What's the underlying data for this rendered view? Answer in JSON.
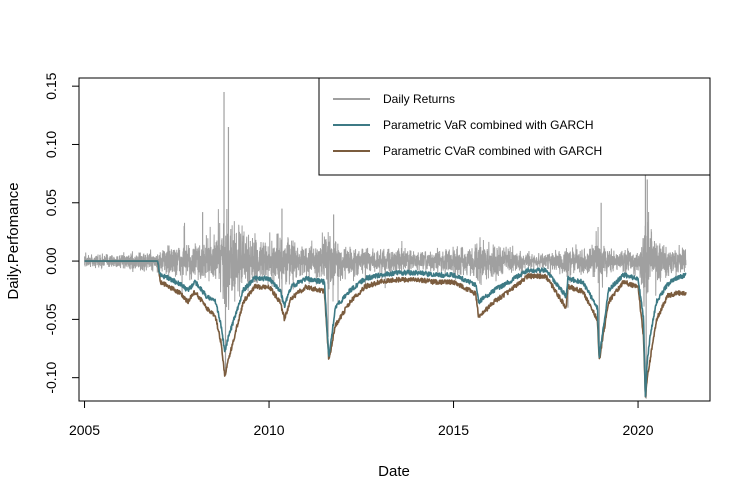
{
  "chart_data": {
    "type": "line",
    "title": "",
    "xlabel": "Date",
    "ylabel": "Daily.Perfomance",
    "xlim": [
      2004.85,
      2021.95
    ],
    "ylim": [
      -0.12,
      0.157
    ],
    "x_ticks": [
      2005,
      2010,
      2015,
      2020
    ],
    "x_tick_labels": [
      "2005",
      "2010",
      "2015",
      "2020"
    ],
    "y_ticks": [
      -0.1,
      -0.05,
      0.0,
      0.05,
      0.1,
      0.15
    ],
    "y_tick_labels": [
      "-0.10",
      "-0.05",
      "0.00",
      "0.05",
      "0.10",
      "0.15"
    ],
    "grid": false,
    "legend_position": "top-right",
    "series": [
      {
        "name": "Daily Returns",
        "color": "#a0a0a0",
        "style": "noisy-returns",
        "x": [
          2005.0,
          2006.0,
          2006.9,
          2007.3,
          2007.6,
          2008.0,
          2008.4,
          2008.7,
          2008.85,
          2009.1,
          2009.5,
          2010.0,
          2010.4,
          2011.0,
          2011.6,
          2011.9,
          2012.5,
          2013.0,
          2013.5,
          2014.0,
          2014.8,
          2015.5,
          2015.7,
          2016.1,
          2016.5,
          2017.0,
          2017.5,
          2018.1,
          2018.5,
          2018.95,
          2019.5,
          2020.0,
          2020.2,
          2020.3,
          2020.5,
          2020.9,
          2021.3
        ],
        "amplitude": [
          0.008,
          0.009,
          0.012,
          0.018,
          0.02,
          0.022,
          0.025,
          0.04,
          0.06,
          0.045,
          0.03,
          0.022,
          0.028,
          0.015,
          0.035,
          0.022,
          0.015,
          0.014,
          0.015,
          0.012,
          0.014,
          0.018,
          0.025,
          0.02,
          0.015,
          0.008,
          0.009,
          0.018,
          0.014,
          0.02,
          0.012,
          0.015,
          0.06,
          0.04,
          0.022,
          0.016,
          0.014
        ],
        "spikes": [
          {
            "x": 2008.78,
            "y": 0.145
          },
          {
            "x": 2008.82,
            "y": -0.095
          },
          {
            "x": 2008.9,
            "y": 0.115
          },
          {
            "x": 2007.7,
            "y": 0.03
          },
          {
            "x": 2008.2,
            "y": 0.042
          },
          {
            "x": 2010.35,
            "y": 0.045
          },
          {
            "x": 2010.35,
            "y": -0.035
          },
          {
            "x": 2011.6,
            "y": -0.065
          },
          {
            "x": 2011.75,
            "y": 0.04
          },
          {
            "x": 2018.1,
            "y": -0.04
          },
          {
            "x": 2018.95,
            "y": -0.08
          },
          {
            "x": 2019.0,
            "y": 0.05
          },
          {
            "x": 2020.2,
            "y": 0.09
          },
          {
            "x": 2020.22,
            "y": -0.118
          },
          {
            "x": 2020.25,
            "y": 0.07
          }
        ]
      },
      {
        "name": "Parametric VaR combined with GARCH",
        "color": "#3d7a85",
        "x": [
          2005.0,
          2006.0,
          2006.98,
          2007.05,
          2007.3,
          2007.6,
          2007.8,
          2008.0,
          2008.3,
          2008.55,
          2008.7,
          2008.8,
          2008.9,
          2009.1,
          2009.3,
          2009.6,
          2010.0,
          2010.3,
          2010.42,
          2010.6,
          2011.0,
          2011.5,
          2011.62,
          2011.8,
          2012.2,
          2012.6,
          2013.0,
          2013.5,
          2014.0,
          2014.5,
          2015.0,
          2015.6,
          2015.68,
          2016.1,
          2016.5,
          2017.0,
          2017.5,
          2018.05,
          2018.1,
          2018.5,
          2018.9,
          2018.95,
          2019.2,
          2019.6,
          2020.0,
          2020.15,
          2020.2,
          2020.25,
          2020.35,
          2020.5,
          2020.8,
          2021.0,
          2021.3
        ],
        "y": [
          0.0,
          0.0,
          0.0,
          -0.012,
          -0.015,
          -0.02,
          -0.025,
          -0.018,
          -0.03,
          -0.035,
          -0.055,
          -0.078,
          -0.065,
          -0.045,
          -0.025,
          -0.015,
          -0.015,
          -0.025,
          -0.038,
          -0.022,
          -0.015,
          -0.018,
          -0.082,
          -0.04,
          -0.025,
          -0.015,
          -0.012,
          -0.01,
          -0.01,
          -0.012,
          -0.012,
          -0.02,
          -0.035,
          -0.025,
          -0.018,
          -0.008,
          -0.008,
          -0.03,
          -0.015,
          -0.018,
          -0.04,
          -0.082,
          -0.025,
          -0.012,
          -0.015,
          -0.05,
          -0.118,
          -0.085,
          -0.06,
          -0.035,
          -0.02,
          -0.015,
          -0.012
        ]
      },
      {
        "name": "Parametric CVaR combined with GARCH",
        "color": "#7b5c3e",
        "x": [
          2005.0,
          2006.0,
          2006.98,
          2007.05,
          2007.3,
          2007.6,
          2007.8,
          2008.0,
          2008.3,
          2008.55,
          2008.7,
          2008.8,
          2008.9,
          2009.1,
          2009.3,
          2009.6,
          2010.0,
          2010.3,
          2010.42,
          2010.6,
          2011.0,
          2011.5,
          2011.62,
          2011.8,
          2012.2,
          2012.6,
          2013.0,
          2013.5,
          2014.0,
          2014.5,
          2015.0,
          2015.6,
          2015.68,
          2016.1,
          2016.5,
          2017.0,
          2017.5,
          2018.05,
          2018.1,
          2018.5,
          2018.9,
          2018.95,
          2019.2,
          2019.6,
          2020.0,
          2020.15,
          2020.2,
          2020.25,
          2020.35,
          2020.5,
          2020.8,
          2021.0,
          2021.3
        ],
        "y": [
          0.0,
          0.0,
          0.0,
          -0.018,
          -0.022,
          -0.028,
          -0.035,
          -0.026,
          -0.04,
          -0.048,
          -0.07,
          -0.098,
          -0.085,
          -0.06,
          -0.035,
          -0.022,
          -0.022,
          -0.035,
          -0.05,
          -0.032,
          -0.022,
          -0.026,
          -0.085,
          -0.055,
          -0.035,
          -0.022,
          -0.018,
          -0.016,
          -0.016,
          -0.018,
          -0.018,
          -0.028,
          -0.048,
          -0.035,
          -0.026,
          -0.013,
          -0.013,
          -0.04,
          -0.022,
          -0.026,
          -0.05,
          -0.085,
          -0.035,
          -0.018,
          -0.022,
          -0.065,
          -0.118,
          -0.1,
          -0.08,
          -0.05,
          -0.03,
          -0.028,
          -0.027
        ]
      }
    ]
  }
}
